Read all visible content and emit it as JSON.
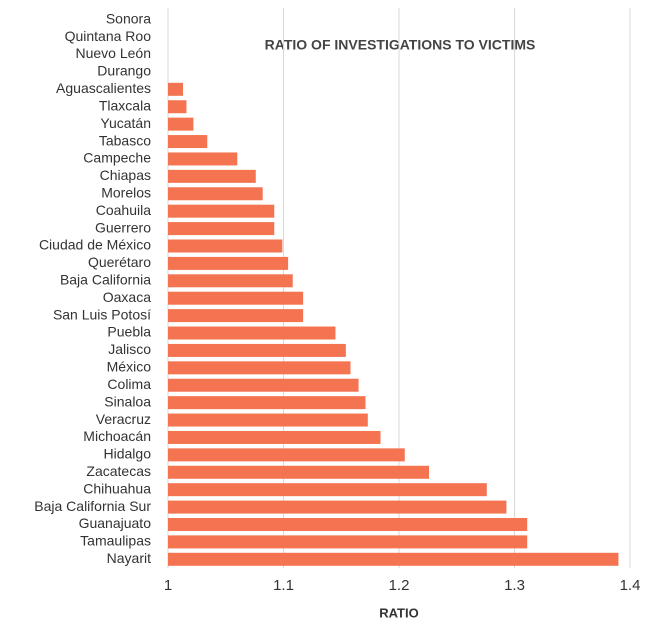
{
  "chart_data": {
    "type": "barh",
    "title": "RATIO OF INVESTIGATIONS TO VICTIMS",
    "xlabel": "RATIO",
    "categories": [
      "Sonora",
      "Quintana Roo",
      "Nuevo León",
      "Durango",
      "Aguascalientes",
      "Tlaxcala",
      "Yucatán",
      "Tabasco",
      "Campeche",
      "Chiapas",
      "Morelos",
      "Coahuila",
      "Guerrero",
      "Ciudad de México",
      "Querétaro",
      "Baja California",
      "Oaxaca",
      "San Luis Potosí",
      "Puebla",
      "Jalisco",
      "México",
      "Colima",
      "Sinaloa",
      "Veracruz",
      "Michoacán",
      "Hidalgo",
      "Zacatecas",
      "Chihuahua",
      "Baja California Sur",
      "Guanajuato",
      "Tamaulipas",
      "Nayarit"
    ],
    "values": [
      1,
      1,
      1,
      1,
      1.013,
      1.016,
      1.022,
      1.034,
      1.06,
      1.076,
      1.082,
      1.092,
      1.092,
      1.099,
      1.104,
      1.108,
      1.117,
      1.117,
      1.145,
      1.154,
      1.158,
      1.165,
      1.171,
      1.173,
      1.184,
      1.205,
      1.226,
      1.276,
      1.293,
      1.311,
      1.311,
      1.39
    ],
    "color": "#f47452",
    "xlim": [
      1,
      1.4
    ],
    "xticks": [
      1,
      1.1,
      1.2,
      1.3,
      1.4
    ],
    "grid": true
  }
}
